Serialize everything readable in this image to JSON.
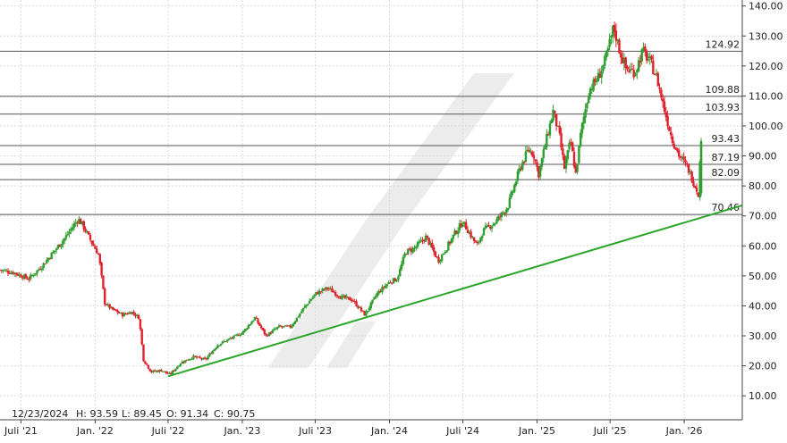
{
  "chart_data": {
    "type": "candlestick",
    "ylim": [
      2,
      142
    ],
    "y_ticks": [
      10,
      20,
      30,
      40,
      50,
      60,
      70,
      80,
      90,
      100,
      110,
      120,
      130,
      140
    ],
    "y_tick_labels": [
      "10.00",
      "20.00",
      "30.00",
      "40.00",
      "50.00",
      "60.00",
      "70.00",
      "80.00",
      "90.00",
      "100.00",
      "110.00",
      "120.00",
      "130.00",
      "140.00"
    ],
    "x_range": [
      "2021-05-10",
      "2026-05-25"
    ],
    "x_ticks": [
      {
        "date": "2021-07-01",
        "label": "Juli '21"
      },
      {
        "date": "2022-01-01",
        "label": "Jan. '22"
      },
      {
        "date": "2022-07-01",
        "label": "Juli '22"
      },
      {
        "date": "2023-01-01",
        "label": "Jan. '23"
      },
      {
        "date": "2023-07-01",
        "label": "Juli '23"
      },
      {
        "date": "2024-01-01",
        "label": "Jan. '24"
      },
      {
        "date": "2024-07-01",
        "label": "Juli '24"
      },
      {
        "date": "2025-01-01",
        "label": "Jan. '25"
      },
      {
        "date": "2025-07-01",
        "label": "Juli '25"
      },
      {
        "date": "2026-01-01",
        "label": "Jan. '26"
      }
    ],
    "grid": true,
    "horizontal_levels": [
      {
        "value": 124.92,
        "label": "124.92"
      },
      {
        "value": 109.88,
        "label": "109.88"
      },
      {
        "value": 103.93,
        "label": "103.93"
      },
      {
        "value": 93.43,
        "label": "93.43"
      },
      {
        "value": 87.19,
        "label": "87.19"
      },
      {
        "value": 82.09,
        "label": "82.09"
      },
      {
        "value": 70.46,
        "label": "70.46"
      }
    ],
    "trendline": {
      "start": {
        "date": "2022-07-01",
        "value": 16.5
      },
      "end": {
        "date": "2026-05-25",
        "value": 73.5
      }
    },
    "info": {
      "date": "12/23/2024",
      "high": "H: 93.59",
      "low": "L: 89.45",
      "open": "O: 91.34",
      "close": "C: 90.75"
    },
    "price_path": [
      [
        "2021-05-10",
        52
      ],
      [
        "2021-06-15",
        51
      ],
      [
        "2021-07-20",
        49
      ],
      [
        "2021-08-20",
        53
      ],
      [
        "2021-09-20",
        58
      ],
      [
        "2021-10-20",
        63
      ],
      [
        "2021-11-20",
        69
      ],
      [
        "2021-12-01",
        67
      ],
      [
        "2021-12-20",
        62
      ],
      [
        "2022-01-10",
        57
      ],
      [
        "2022-01-25",
        41
      ],
      [
        "2022-02-10",
        39
      ],
      [
        "2022-03-10",
        37
      ],
      [
        "2022-04-01",
        38
      ],
      [
        "2022-04-20",
        36
      ],
      [
        "2022-05-01",
        22
      ],
      [
        "2022-05-20",
        18
      ],
      [
        "2022-06-15",
        18.5
      ],
      [
        "2022-07-05",
        17
      ],
      [
        "2022-08-01",
        21
      ],
      [
        "2022-09-01",
        23
      ],
      [
        "2022-10-01",
        22
      ],
      [
        "2022-11-01",
        27
      ],
      [
        "2022-12-01",
        29
      ],
      [
        "2023-01-01",
        31
      ],
      [
        "2023-02-01",
        36
      ],
      [
        "2023-03-01",
        30
      ],
      [
        "2023-04-01",
        33
      ],
      [
        "2023-05-01",
        33
      ],
      [
        "2023-06-01",
        39
      ],
      [
        "2023-07-01",
        44
      ],
      [
        "2023-08-01",
        46
      ],
      [
        "2023-09-01",
        43
      ],
      [
        "2023-10-01",
        42
      ],
      [
        "2023-11-01",
        37
      ],
      [
        "2023-12-01",
        44
      ],
      [
        "2024-01-01",
        48
      ],
      [
        "2024-01-20",
        49
      ],
      [
        "2024-02-10",
        58
      ],
      [
        "2024-03-01",
        59
      ],
      [
        "2024-04-01",
        63
      ],
      [
        "2024-05-01",
        55
      ],
      [
        "2024-05-20",
        59
      ],
      [
        "2024-06-10",
        64
      ],
      [
        "2024-07-01",
        68
      ],
      [
        "2024-08-05",
        60
      ],
      [
        "2024-08-20",
        65
      ],
      [
        "2024-09-20",
        68
      ],
      [
        "2024-10-20",
        73
      ],
      [
        "2024-11-20",
        86
      ],
      [
        "2024-12-10",
        92
      ],
      [
        "2024-12-23",
        90.75
      ],
      [
        "2025-01-05",
        84
      ],
      [
        "2025-01-20",
        93
      ],
      [
        "2025-02-10",
        105
      ],
      [
        "2025-02-25",
        97
      ],
      [
        "2025-03-10",
        86
      ],
      [
        "2025-03-25",
        95
      ],
      [
        "2025-04-07",
        84
      ],
      [
        "2025-04-20",
        98
      ],
      [
        "2025-05-10",
        112
      ],
      [
        "2025-06-01",
        116
      ],
      [
        "2025-06-20",
        122
      ],
      [
        "2025-07-10",
        133
      ],
      [
        "2025-07-25",
        125
      ],
      [
        "2025-08-10",
        119
      ],
      [
        "2025-09-01",
        118
      ],
      [
        "2025-09-20",
        125
      ],
      [
        "2025-10-10",
        121
      ],
      [
        "2025-10-25",
        116
      ],
      [
        "2025-11-10",
        107
      ],
      [
        "2025-12-01",
        96
      ],
      [
        "2025-12-20",
        90
      ],
      [
        "2026-01-10",
        86
      ],
      [
        "2026-01-25",
        81
      ],
      [
        "2026-02-05",
        77.5
      ],
      [
        "2026-02-12",
        95
      ]
    ]
  }
}
